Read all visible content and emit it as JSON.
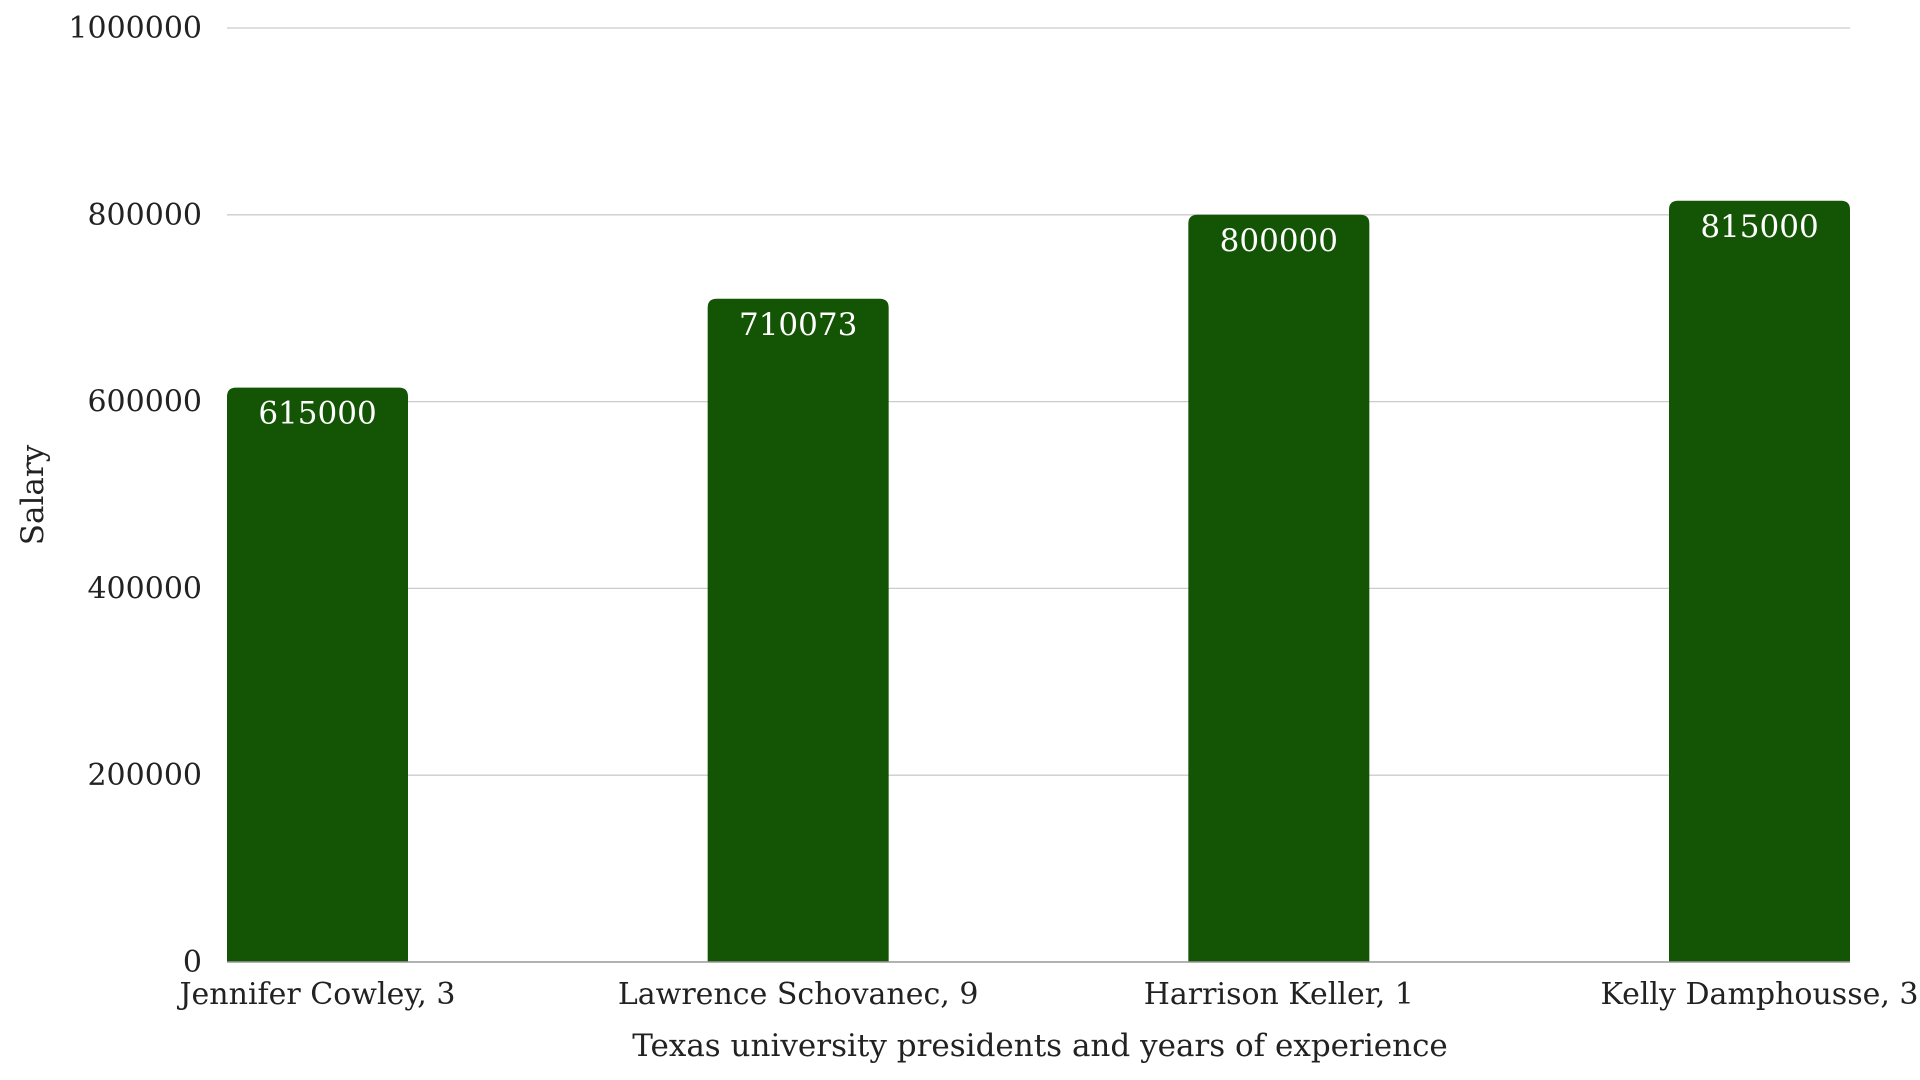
{
  "chart_data": {
    "type": "bar",
    "categories": [
      "Jennifer Cowley, 3",
      "Lawrence Schovanec, 9",
      "Harrison Keller, 1",
      "Kelly Damphousse, 3"
    ],
    "values": [
      615000,
      710073,
      800000,
      815000
    ],
    "data_labels": [
      "615000",
      "710073",
      "800000",
      "815000"
    ],
    "title": "",
    "xlabel": "Texas university presidents and years of experience",
    "ylabel": "Salary",
    "ylim": [
      0,
      1000000
    ],
    "yticks": [
      0,
      200000,
      400000,
      600000,
      800000,
      1000000
    ],
    "ytick_labels": [
      "0",
      "200000",
      "400000",
      "600000",
      "800000",
      "1000000"
    ],
    "grid": true,
    "legend": "none",
    "bar_color": "#135504",
    "grid_color": "#cccccc",
    "axis_color": "#999999",
    "text_color": "#222222",
    "data_label_color": "#ffffff"
  }
}
